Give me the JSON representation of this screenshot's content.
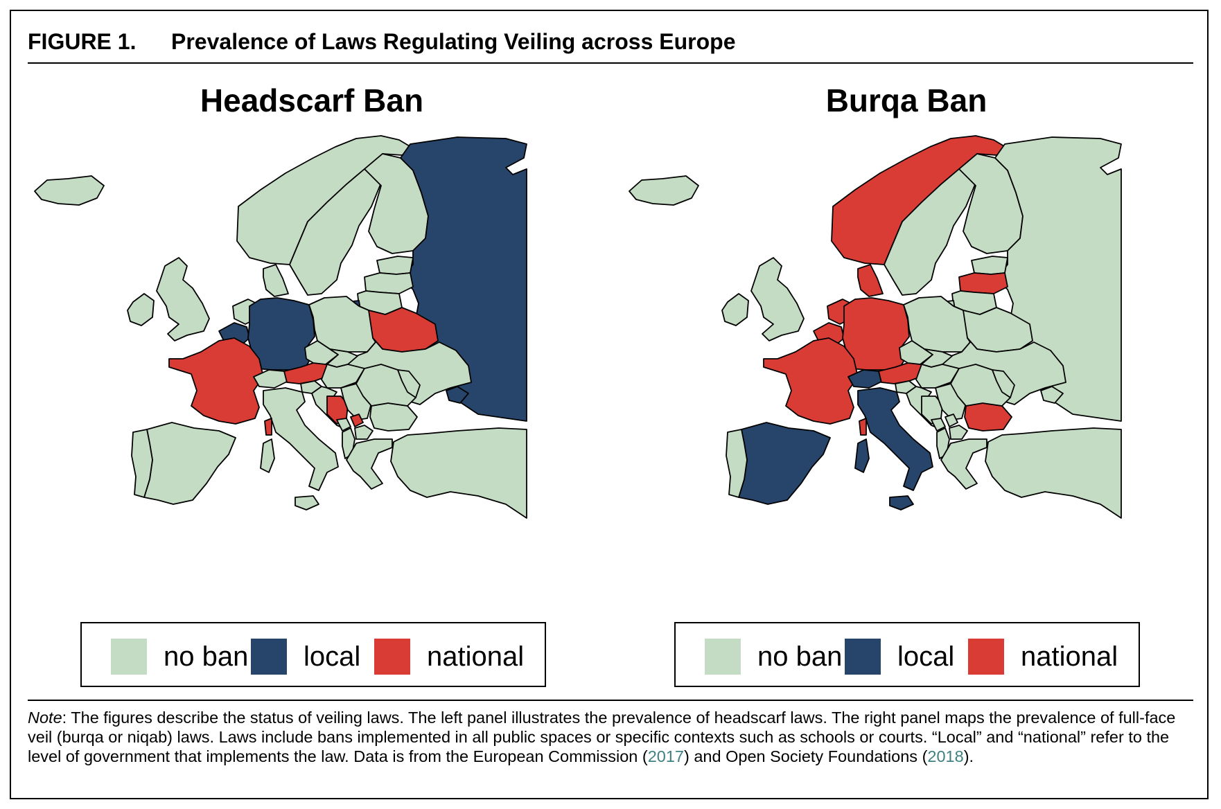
{
  "figure": {
    "label": "FIGURE 1.",
    "title": "Prevalence of Laws Regulating Veiling across Europe"
  },
  "colors": {
    "no_ban": "#c5dcc4",
    "local": "#27456b",
    "national": "#d93b35",
    "background": "#ffffff",
    "border": "#000000"
  },
  "legend": {
    "no_ban": "no ban",
    "local": "local",
    "national": "national"
  },
  "panels": {
    "left": {
      "title": "Headscarf Ban",
      "status": {
        "Iceland": "no_ban",
        "Ireland": "no_ban",
        "UK": "no_ban",
        "Norway": "no_ban",
        "Sweden": "no_ban",
        "Finland": "no_ban",
        "Russia": "local",
        "Estonia": "no_ban",
        "Latvia": "no_ban",
        "Lithuania": "no_ban",
        "Kaliningrad": "local",
        "Denmark": "no_ban",
        "Netherlands": "no_ban",
        "Belgium": "local",
        "Germany": "local",
        "Poland": "no_ban",
        "Belarus": "national",
        "Ukraine": "no_ban",
        "France": "national",
        "Switzerland": "no_ban",
        "Austria": "national",
        "Czechia": "no_ban",
        "Slovakia": "no_ban",
        "Hungary": "no_ban",
        "Slovenia": "no_ban",
        "Croatia": "no_ban",
        "Bosnia": "national",
        "Serbia": "no_ban",
        "Kosovo": "national",
        "Montenegro": "no_ban",
        "Albania": "no_ban",
        "North Macedonia": "no_ban",
        "Bulgaria": "no_ban",
        "Romania": "no_ban",
        "Moldova": "no_ban",
        "Greece": "no_ban",
        "Turkey": "no_ban",
        "Italy": "no_ban",
        "Sardinia": "no_ban",
        "Sicily": "no_ban",
        "Corsica": "national",
        "Spain": "no_ban",
        "Portugal": "no_ban",
        "Crimea": "local"
      }
    },
    "right": {
      "title": "Burqa Ban",
      "status": {
        "Iceland": "no_ban",
        "Ireland": "no_ban",
        "UK": "no_ban",
        "Norway": "national",
        "Sweden": "no_ban",
        "Finland": "no_ban",
        "Russia": "no_ban",
        "Estonia": "no_ban",
        "Latvia": "national",
        "Lithuania": "no_ban",
        "Kaliningrad": "no_ban",
        "Denmark": "national",
        "Netherlands": "national",
        "Belgium": "national",
        "Germany": "national",
        "Poland": "no_ban",
        "Belarus": "no_ban",
        "Ukraine": "no_ban",
        "France": "national",
        "Switzerland": "local",
        "Austria": "national",
        "Czechia": "no_ban",
        "Slovakia": "no_ban",
        "Hungary": "no_ban",
        "Slovenia": "no_ban",
        "Croatia": "no_ban",
        "Bosnia": "no_ban",
        "Serbia": "no_ban",
        "Kosovo": "no_ban",
        "Montenegro": "no_ban",
        "Albania": "no_ban",
        "North Macedonia": "no_ban",
        "Bulgaria": "national",
        "Romania": "no_ban",
        "Moldova": "no_ban",
        "Greece": "no_ban",
        "Turkey": "no_ban",
        "Italy": "local",
        "Sardinia": "local",
        "Sicily": "local",
        "Corsica": "national",
        "Spain": "local",
        "Portugal": "no_ban",
        "Crimea": "no_ban"
      }
    }
  },
  "note": {
    "label": "Note",
    "text_1": ": The figures describe the status of veiling laws. The left panel illustrates the prevalence of headscarf laws. The right panel maps the prevalence of full-face veil (burqa or niqab) laws. Laws include bans implemented in all public spaces or specific contexts such as schools or courts. “Local” and “national” refer to the level of government that implements the law. Data is from the European Commission (",
    "ref_1": "2017",
    "text_2": ") and Open Society Foundations (",
    "ref_2": "2018",
    "text_3": ")."
  }
}
